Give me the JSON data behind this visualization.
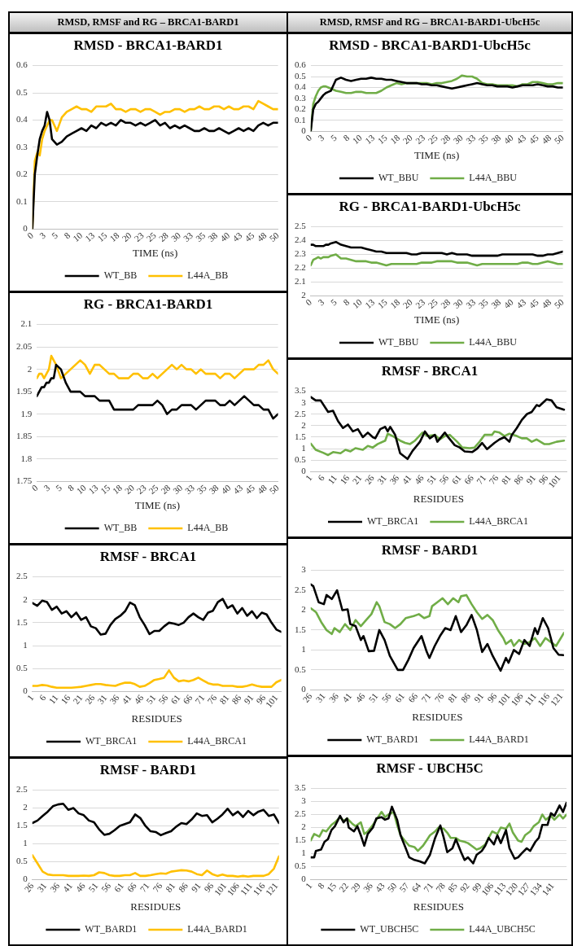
{
  "chart_data": [
    {
      "type": "other",
      "title": "RMSD, RMSF and RG – BRCA1-BARD1"
    },
    {
      "type": "line",
      "title": "RMSD - BRCA1-BARD1",
      "xlabel": "TIME (ns)",
      "grid": "y",
      "legend": "bottom",
      "marker": "none",
      "xlim": [
        0,
        50
      ],
      "ylim": [
        0,
        0.6
      ],
      "yticks": [
        0,
        0.1,
        0.2,
        0.3,
        0.4,
        0.5,
        0.6
      ],
      "xticks": [
        0,
        {
          "value": 2.5,
          "label": "3"
        },
        5,
        {
          "value": 7.5,
          "label": "8"
        },
        10,
        {
          "value": 12.5,
          "label": "13"
        },
        15,
        {
          "value": 17.5,
          "label": "18"
        },
        20,
        {
          "value": 22.5,
          "label": "23"
        },
        25,
        {
          "value": 27.5,
          "label": "28"
        },
        30,
        {
          "value": 32.5,
          "label": "33"
        },
        35,
        {
          "value": 37.5,
          "label": "38"
        },
        40,
        {
          "value": 42.5,
          "label": "43"
        },
        45,
        {
          "value": 47.5,
          "label": "48"
        },
        50
      ],
      "x": [
        0,
        0.5,
        1,
        1.5,
        2,
        2.5,
        3,
        3.5,
        4,
        5,
        6,
        7,
        8,
        9,
        10,
        11,
        12,
        13,
        14,
        15,
        16,
        17,
        18,
        19,
        20,
        21,
        22,
        23,
        24,
        25,
        26,
        27,
        28,
        29,
        30,
        31,
        32,
        33,
        34,
        35,
        36,
        37,
        38,
        39,
        40,
        41,
        42,
        43,
        44,
        45,
        46,
        47,
        48,
        49,
        50
      ],
      "series": [
        {
          "name": "WT_BB",
          "color": "#000000",
          "values": [
            0,
            0.2,
            0.27,
            0.33,
            0.36,
            0.38,
            0.43,
            0.4,
            0.33,
            0.31,
            0.32,
            0.34,
            0.35,
            0.36,
            0.37,
            0.36,
            0.38,
            0.37,
            0.39,
            0.38,
            0.39,
            0.38,
            0.4,
            0.39,
            0.39,
            0.38,
            0.39,
            0.38,
            0.39,
            0.4,
            0.38,
            0.39,
            0.37,
            0.38,
            0.37,
            0.38,
            0.37,
            0.36,
            0.36,
            0.37,
            0.36,
            0.36,
            0.37,
            0.36,
            0.35,
            0.36,
            0.37,
            0.36,
            0.37,
            0.36,
            0.38,
            0.39,
            0.38,
            0.39,
            0.39
          ]
        },
        {
          "name": "L44A_BB",
          "color": "#ffc000",
          "values": [
            0,
            0.25,
            0.28,
            0.27,
            0.33,
            0.36,
            0.38,
            0.4,
            0.4,
            0.36,
            0.41,
            0.43,
            0.44,
            0.45,
            0.44,
            0.44,
            0.43,
            0.45,
            0.45,
            0.45,
            0.46,
            0.44,
            0.44,
            0.43,
            0.44,
            0.44,
            0.43,
            0.44,
            0.44,
            0.43,
            0.42,
            0.43,
            0.43,
            0.44,
            0.44,
            0.43,
            0.44,
            0.44,
            0.45,
            0.44,
            0.44,
            0.45,
            0.45,
            0.44,
            0.45,
            0.44,
            0.44,
            0.45,
            0.45,
            0.44,
            0.47,
            0.46,
            0.45,
            0.44,
            0.44
          ]
        }
      ]
    },
    {
      "type": "line",
      "title": "RG - BRCA1-BARD1",
      "xlabel": "TIME (ns)",
      "grid": "y",
      "legend": "bottom",
      "marker": "none",
      "xlim": [
        0,
        50
      ],
      "ylim": [
        1.75,
        2.1
      ],
      "yticks": [
        1.75,
        1.8,
        1.85,
        1.9,
        1.95,
        2,
        2.05,
        2.1
      ],
      "xticks": [
        0,
        {
          "value": 2.5,
          "label": "3"
        },
        5,
        {
          "value": 7.5,
          "label": "8"
        },
        10,
        {
          "value": 12.5,
          "label": "13"
        },
        15,
        {
          "value": 17.5,
          "label": "18"
        },
        20,
        {
          "value": 22.5,
          "label": "23"
        },
        25,
        {
          "value": 27.5,
          "label": "28"
        },
        30,
        {
          "value": 32.5,
          "label": "33"
        },
        35,
        {
          "value": 37.5,
          "label": "38"
        },
        40,
        {
          "value": 42.5,
          "label": "43"
        },
        45,
        {
          "value": 47.5,
          "label": "48"
        },
        50
      ],
      "x": [
        0,
        0.5,
        1,
        1.5,
        2,
        2.5,
        3,
        3.5,
        4,
        5,
        6,
        7,
        8,
        9,
        10,
        11,
        12,
        13,
        14,
        15,
        16,
        17,
        18,
        19,
        20,
        21,
        22,
        23,
        24,
        25,
        26,
        27,
        28,
        29,
        30,
        31,
        32,
        33,
        34,
        35,
        36,
        37,
        38,
        39,
        40,
        41,
        42,
        43,
        44,
        45,
        46,
        47,
        48,
        49,
        50
      ],
      "series": [
        {
          "name": "WT_BB",
          "color": "#000000",
          "values": [
            1.94,
            1.95,
            1.96,
            1.96,
            1.97,
            1.97,
            1.98,
            1.98,
            2.01,
            2,
            1.97,
            1.95,
            1.95,
            1.95,
            1.94,
            1.94,
            1.94,
            1.93,
            1.93,
            1.93,
            1.91,
            1.91,
            1.91,
            1.91,
            1.91,
            1.92,
            1.92,
            1.92,
            1.92,
            1.93,
            1.92,
            1.9,
            1.91,
            1.91,
            1.92,
            1.92,
            1.92,
            1.91,
            1.92,
            1.93,
            1.93,
            1.93,
            1.92,
            1.92,
            1.93,
            1.92,
            1.93,
            1.94,
            1.93,
            1.92,
            1.92,
            1.91,
            1.91,
            1.89,
            1.9
          ]
        },
        {
          "name": "L44A_BB",
          "color": "#ffc000",
          "values": [
            1.98,
            1.99,
            1.99,
            1.98,
            1.99,
            2,
            2.03,
            2.02,
            2.01,
            1.98,
            1.99,
            2,
            2.01,
            2.02,
            2.01,
            1.99,
            2.01,
            2.01,
            2,
            1.99,
            1.99,
            1.98,
            1.98,
            1.98,
            1.99,
            1.99,
            1.98,
            1.98,
            1.99,
            1.98,
            1.99,
            2,
            2.01,
            2,
            2.01,
            2,
            2,
            1.99,
            2,
            1.99,
            1.99,
            1.99,
            1.98,
            1.99,
            1.99,
            1.98,
            1.99,
            2,
            2,
            2,
            2.01,
            2.01,
            2.02,
            2,
            1.99
          ]
        }
      ]
    },
    {
      "type": "line",
      "title": "RMSF - BRCA1",
      "xlabel": "RESIDUES",
      "grid": "y",
      "legend": "bottom",
      "marker": "none",
      "xlim": [
        1,
        103
      ],
      "ylim": [
        0,
        2.5
      ],
      "yticks": [
        0,
        0.5,
        1,
        1.5,
        2,
        2.5
      ],
      "xticks": [
        1,
        6,
        11,
        16,
        21,
        26,
        31,
        36,
        41,
        46,
        51,
        56,
        61,
        66,
        71,
        76,
        81,
        86,
        91,
        96,
        101
      ],
      "x": [
        1,
        3,
        5,
        7,
        9,
        11,
        13,
        15,
        17,
        19,
        21,
        23,
        25,
        27,
        29,
        31,
        33,
        35,
        37,
        39,
        41,
        43,
        45,
        47,
        49,
        51,
        53,
        55,
        57,
        59,
        61,
        63,
        65,
        67,
        69,
        71,
        73,
        75,
        77,
        79,
        81,
        83,
        85,
        87,
        89,
        91,
        93,
        95,
        97,
        99,
        101,
        103
      ],
      "series": [
        {
          "name": "WT_BRCA1",
          "color": "#000000",
          "values": [
            1.93,
            1.87,
            1.98,
            1.95,
            1.78,
            1.85,
            1.7,
            1.75,
            1.62,
            1.72,
            1.56,
            1.62,
            1.42,
            1.38,
            1.24,
            1.26,
            1.45,
            1.58,
            1.65,
            1.75,
            1.94,
            1.88,
            1.62,
            1.45,
            1.25,
            1.32,
            1.32,
            1.42,
            1.5,
            1.48,
            1.45,
            1.5,
            1.62,
            1.7,
            1.62,
            1.56,
            1.72,
            1.76,
            1.95,
            2.02,
            1.82,
            1.88,
            1.7,
            1.82,
            1.65,
            1.75,
            1.6,
            1.72,
            1.68,
            1.5,
            1.35,
            1.3
          ]
        },
        {
          "name": "L44A_BRCA1",
          "color": "#ffc000",
          "values": [
            0.12,
            0.12,
            0.14,
            0.13,
            0.1,
            0.08,
            0.08,
            0.08,
            0.08,
            0.09,
            0.1,
            0.12,
            0.14,
            0.16,
            0.16,
            0.14,
            0.13,
            0.12,
            0.16,
            0.19,
            0.19,
            0.16,
            0.1,
            0.12,
            0.18,
            0.25,
            0.27,
            0.3,
            0.46,
            0.3,
            0.22,
            0.24,
            0.22,
            0.25,
            0.3,
            0.24,
            0.18,
            0.15,
            0.15,
            0.12,
            0.12,
            0.12,
            0.1,
            0.1,
            0.12,
            0.15,
            0.12,
            0.1,
            0.1,
            0.1,
            0.2,
            0.25
          ]
        }
      ]
    },
    {
      "type": "line",
      "title": "RMSF - BARD1",
      "xlabel": "RESIDUES",
      "grid": "y",
      "legend": "bottom",
      "marker": "none",
      "xlim": [
        26,
        122
      ],
      "ylim": [
        0,
        2.5
      ],
      "yticks": [
        0,
        0.5,
        1,
        1.5,
        2,
        2.5
      ],
      "xticks": [
        26,
        31,
        36,
        41,
        46,
        51,
        56,
        61,
        66,
        71,
        76,
        81,
        86,
        91,
        96,
        101,
        106,
        111,
        116,
        121
      ],
      "x": [
        26,
        28,
        30,
        32,
        34,
        36,
        38,
        40,
        42,
        44,
        46,
        48,
        50,
        52,
        54,
        56,
        58,
        60,
        62,
        64,
        66,
        68,
        70,
        72,
        74,
        76,
        78,
        80,
        82,
        84,
        86,
        88,
        90,
        92,
        94,
        96,
        98,
        100,
        102,
        104,
        106,
        108,
        110,
        112,
        114,
        116,
        118,
        120,
        122
      ],
      "series": [
        {
          "name": "WT_BARD1",
          "color": "#000000",
          "values": [
            1.58,
            1.65,
            1.78,
            1.9,
            2.05,
            2.1,
            2.12,
            1.95,
            2,
            1.85,
            1.8,
            1.65,
            1.6,
            1.4,
            1.25,
            1.28,
            1.38,
            1.5,
            1.55,
            1.6,
            1.82,
            1.72,
            1.5,
            1.35,
            1.33,
            1.24,
            1.3,
            1.35,
            1.48,
            1.58,
            1.55,
            1.68,
            1.85,
            1.78,
            1.8,
            1.6,
            1.7,
            1.82,
            1.98,
            1.8,
            1.9,
            1.75,
            1.92,
            1.8,
            1.9,
            1.95,
            1.78,
            1.82,
            1.58
          ]
        },
        {
          "name": "L44A_BARD1",
          "color": "#ffc000",
          "values": [
            0.68,
            0.45,
            0.22,
            0.14,
            0.12,
            0.12,
            0.12,
            0.1,
            0.1,
            0.1,
            0.11,
            0.1,
            0.12,
            0.2,
            0.18,
            0.12,
            0.1,
            0.1,
            0.12,
            0.12,
            0.18,
            0.1,
            0.1,
            0.12,
            0.15,
            0.17,
            0.16,
            0.22,
            0.24,
            0.26,
            0.25,
            0.22,
            0.15,
            0.12,
            0.25,
            0.15,
            0.1,
            0.14,
            0.1,
            0.1,
            0.08,
            0.1,
            0.08,
            0.1,
            0.1,
            0.1,
            0.15,
            0.3,
            0.65
          ]
        }
      ]
    },
    {
      "type": "other",
      "title": "RMSD, RMSF and RG – BRCA1-BARD1-UbcH5c"
    },
    {
      "type": "line",
      "title": "RMSD - BRCA1-BARD1-UbcH5c",
      "xlabel": "TIME (ns)",
      "grid": "y",
      "legend": "bottom",
      "marker": "none",
      "xlim": [
        0,
        50
      ],
      "ylim": [
        0,
        0.6
      ],
      "yticks": [
        0,
        0.1,
        0.2,
        0.3,
        0.4,
        0.5,
        0.6
      ],
      "xticks": [
        0,
        {
          "value": 2.5,
          "label": "3"
        },
        5,
        {
          "value": 7.5,
          "label": "8"
        },
        10,
        {
          "value": 12.5,
          "label": "13"
        },
        15,
        {
          "value": 17.5,
          "label": "18"
        },
        20,
        {
          "value": 22.5,
          "label": "23"
        },
        25,
        {
          "value": 27.5,
          "label": "28"
        },
        30,
        {
          "value": 32.5,
          "label": "33"
        },
        35,
        {
          "value": 37.5,
          "label": "38"
        },
        40,
        {
          "value": 42.5,
          "label": "43"
        },
        45,
        {
          "value": 47.5,
          "label": "48"
        },
        50
      ],
      "x": [
        0,
        0.5,
        1,
        1.5,
        2,
        2.5,
        3,
        3.5,
        4,
        5,
        6,
        7,
        8,
        9,
        10,
        11,
        12,
        13,
        14,
        15,
        16,
        17,
        18,
        19,
        20,
        21,
        22,
        23,
        24,
        25,
        26,
        27,
        28,
        29,
        30,
        31,
        32,
        33,
        34,
        35,
        36,
        37,
        38,
        39,
        40,
        41,
        42,
        43,
        44,
        45,
        46,
        47,
        48,
        49,
        50
      ],
      "series": [
        {
          "name": "WT_BBU",
          "color": "#000000",
          "values": [
            0,
            0.2,
            0.25,
            0.27,
            0.3,
            0.33,
            0.35,
            0.36,
            0.37,
            0.47,
            0.49,
            0.47,
            0.46,
            0.47,
            0.48,
            0.48,
            0.49,
            0.48,
            0.48,
            0.47,
            0.47,
            0.46,
            0.45,
            0.44,
            0.44,
            0.44,
            0.43,
            0.43,
            0.42,
            0.42,
            0.41,
            0.4,
            0.39,
            0.4,
            0.41,
            0.42,
            0.43,
            0.44,
            0.43,
            0.42,
            0.42,
            0.41,
            0.41,
            0.41,
            0.4,
            0.41,
            0.42,
            0.42,
            0.42,
            0.43,
            0.42,
            0.41,
            0.41,
            0.4,
            0.4
          ]
        },
        {
          "name": "L44A_BBU",
          "color": "#70ad47",
          "values": [
            0,
            0.25,
            0.32,
            0.37,
            0.4,
            0.41,
            0.41,
            0.4,
            0.39,
            0.37,
            0.36,
            0.35,
            0.35,
            0.36,
            0.36,
            0.35,
            0.35,
            0.35,
            0.37,
            0.4,
            0.42,
            0.44,
            0.43,
            0.44,
            0.44,
            0.44,
            0.44,
            0.44,
            0.43,
            0.44,
            0.44,
            0.45,
            0.46,
            0.48,
            0.51,
            0.5,
            0.5,
            0.48,
            0.44,
            0.43,
            0.43,
            0.42,
            0.42,
            0.42,
            0.42,
            0.41,
            0.43,
            0.43,
            0.45,
            0.45,
            0.44,
            0.43,
            0.43,
            0.44,
            0.44
          ]
        }
      ]
    },
    {
      "type": "line",
      "title": "RG - BRCA1-BARD1-UbcH5c",
      "xlabel": "TIME (ns)",
      "grid": "y",
      "legend": "bottom",
      "marker": "none",
      "xlim": [
        0,
        50
      ],
      "ylim": [
        2,
        2.5
      ],
      "yticks": [
        2,
        2.1,
        2.2,
        2.3,
        2.4,
        2.5
      ],
      "xticks": [
        0,
        {
          "value": 2.5,
          "label": "3"
        },
        5,
        {
          "value": 7.5,
          "label": "8"
        },
        10,
        {
          "value": 12.5,
          "label": "13"
        },
        15,
        {
          "value": 17.5,
          "label": "18"
        },
        20,
        {
          "value": 22.5,
          "label": "23"
        },
        25,
        {
          "value": 27.5,
          "label": "28"
        },
        30,
        {
          "value": 32.5,
          "label": "33"
        },
        35,
        {
          "value": 37.5,
          "label": "38"
        },
        40,
        {
          "value": 42.5,
          "label": "43"
        },
        45,
        {
          "value": 47.5,
          "label": "48"
        },
        50
      ],
      "x": [
        0,
        0.5,
        1,
        1.5,
        2,
        2.5,
        3,
        3.5,
        4,
        5,
        6,
        7,
        8,
        9,
        10,
        11,
        12,
        13,
        14,
        15,
        16,
        17,
        18,
        19,
        20,
        21,
        22,
        23,
        24,
        25,
        26,
        27,
        28,
        29,
        30,
        31,
        32,
        33,
        34,
        35,
        36,
        37,
        38,
        39,
        40,
        41,
        42,
        43,
        44,
        45,
        46,
        47,
        48,
        49,
        50
      ],
      "series": [
        {
          "name": "WT_BBU",
          "color": "#000000",
          "values": [
            2.37,
            2.37,
            2.36,
            2.36,
            2.36,
            2.36,
            2.37,
            2.37,
            2.38,
            2.39,
            2.37,
            2.36,
            2.35,
            2.35,
            2.35,
            2.34,
            2.33,
            2.32,
            2.32,
            2.31,
            2.31,
            2.31,
            2.31,
            2.31,
            2.3,
            2.3,
            2.31,
            2.31,
            2.31,
            2.31,
            2.31,
            2.3,
            2.31,
            2.3,
            2.3,
            2.3,
            2.29,
            2.29,
            2.29,
            2.29,
            2.29,
            2.29,
            2.3,
            2.3,
            2.3,
            2.3,
            2.3,
            2.3,
            2.3,
            2.29,
            2.29,
            2.3,
            2.3,
            2.31,
            2.32
          ]
        },
        {
          "name": "L44A_BBU",
          "color": "#70ad47",
          "values": [
            2.22,
            2.26,
            2.27,
            2.28,
            2.27,
            2.28,
            2.28,
            2.28,
            2.29,
            2.3,
            2.27,
            2.27,
            2.26,
            2.25,
            2.25,
            2.25,
            2.24,
            2.24,
            2.23,
            2.22,
            2.23,
            2.23,
            2.23,
            2.23,
            2.23,
            2.23,
            2.24,
            2.24,
            2.24,
            2.25,
            2.25,
            2.25,
            2.25,
            2.24,
            2.24,
            2.24,
            2.23,
            2.22,
            2.23,
            2.23,
            2.23,
            2.23,
            2.23,
            2.23,
            2.23,
            2.23,
            2.24,
            2.24,
            2.23,
            2.23,
            2.24,
            2.25,
            2.24,
            2.23,
            2.23
          ]
        }
      ]
    },
    {
      "type": "line",
      "title": "RMSF - BRCA1",
      "xlabel": "RESIDUES",
      "grid": "y",
      "legend": "bottom",
      "marker": "none",
      "xlim": [
        1,
        104
      ],
      "ylim": [
        0,
        3.5
      ],
      "yticks": [
        0,
        0.5,
        1,
        1.5,
        2,
        2.5,
        3,
        3.5
      ],
      "xticks": [
        1,
        6,
        11,
        16,
        21,
        26,
        31,
        36,
        41,
        46,
        51,
        56,
        61,
        66,
        71,
        76,
        81,
        86,
        91,
        96,
        101
      ],
      "series": [
        {
          "name": "WT_BRCA1",
          "color": "#000000",
          "x": [
            1,
            3,
            5,
            8,
            10,
            12,
            14,
            16,
            18,
            20,
            22,
            24,
            26,
            27,
            29,
            31,
            32,
            33,
            35,
            37,
            40,
            42,
            45,
            47,
            49,
            51,
            52,
            55,
            56,
            59,
            61,
            63,
            66,
            68,
            70,
            72,
            75,
            77,
            79,
            81,
            82,
            84,
            86,
            88,
            90,
            92,
            93,
            96,
            98,
            100,
            103
          ],
          "values": [
            3.25,
            3.1,
            3.1,
            2.6,
            2.65,
            2.2,
            1.9,
            2.05,
            1.75,
            1.85,
            1.5,
            1.7,
            1.5,
            1.45,
            1.85,
            1.95,
            1.75,
            1.95,
            1.6,
            0.8,
            0.55,
            0.9,
            1.3,
            1.75,
            1.45,
            1.6,
            1.3,
            1.7,
            1.55,
            1.15,
            1.05,
            0.88,
            0.85,
            1,
            1.25,
            0.98,
            1.25,
            1.4,
            1.5,
            1.3,
            1.6,
            1.9,
            2.25,
            2.5,
            2.6,
            2.9,
            2.85,
            3.15,
            3.1,
            2.8,
            2.7
          ]
        },
        {
          "name": "L44A_BRCA1",
          "color": "#70ad47",
          "x": [
            1,
            3,
            6,
            8,
            10,
            13,
            15,
            17,
            19,
            22,
            24,
            26,
            28,
            31,
            32,
            34,
            37,
            39,
            41,
            43,
            46,
            48,
            51,
            53,
            55,
            57,
            60,
            62,
            65,
            67,
            69,
            71,
            74,
            75,
            77,
            79,
            81,
            84,
            86,
            88,
            90,
            92,
            95,
            97,
            100,
            103
          ],
          "values": [
            1.22,
            0.95,
            0.82,
            0.72,
            0.85,
            0.8,
            0.95,
            0.88,
            1.02,
            0.95,
            1.12,
            1.05,
            1.2,
            1.35,
            1.65,
            1.55,
            1.35,
            1.25,
            1.2,
            1.35,
            1.7,
            1.55,
            1.6,
            1.4,
            1.55,
            1.6,
            1.3,
            1.05,
            1.02,
            1.05,
            1.3,
            1.6,
            1.6,
            1.75,
            1.7,
            1.55,
            1.65,
            1.55,
            1.45,
            1.45,
            1.3,
            1.4,
            1.2,
            1.2,
            1.3,
            1.35
          ]
        }
      ]
    },
    {
      "type": "line",
      "title": "RMSF - BARD1",
      "xlabel": "RESIDUES",
      "grid": "y",
      "legend": "bottom",
      "marker": "none",
      "xlim": [
        26,
        122
      ],
      "ylim": [
        0,
        3
      ],
      "yticks": [
        0,
        0.5,
        1,
        1.5,
        2,
        2.5,
        3
      ],
      "xticks": [
        26,
        31,
        36,
        41,
        46,
        51,
        56,
        61,
        66,
        71,
        76,
        81,
        86,
        91,
        96,
        101,
        106,
        111,
        116,
        121
      ],
      "series": [
        {
          "name": "WT_BARD1",
          "color": "#000000",
          "x": [
            26,
            27,
            29,
            31,
            32,
            34,
            36,
            38,
            40,
            41,
            43,
            45,
            46,
            48,
            50,
            52,
            54,
            56,
            59,
            61,
            63,
            65,
            68,
            70,
            71,
            73,
            75,
            77,
            79,
            81,
            83,
            85,
            87,
            89,
            91,
            93,
            95,
            98,
            100,
            101,
            103,
            105,
            107,
            109,
            111,
            112,
            114,
            116,
            118,
            120,
            122
          ],
          "values": [
            2.65,
            2.6,
            2.2,
            2.15,
            2.38,
            2.28,
            2.5,
            2,
            2.02,
            1.65,
            1.6,
            1.25,
            1.35,
            0.97,
            0.98,
            1.5,
            1.25,
            0.85,
            0.5,
            0.5,
            0.75,
            1.05,
            1.35,
            0.95,
            0.8,
            1.1,
            1.35,
            1.55,
            1.5,
            1.85,
            1.45,
            1.62,
            1.88,
            1.5,
            0.95,
            1.15,
            0.85,
            0.48,
            0.8,
            0.68,
            1,
            0.9,
            1.25,
            1.1,
            1.55,
            1.4,
            1.8,
            1.55,
            1.05,
            0.88,
            0.87
          ]
        },
        {
          "name": "L44A_BARD1",
          "color": "#70ad47",
          "x": [
            26,
            28,
            30,
            32,
            34,
            35,
            37,
            39,
            41,
            43,
            45,
            47,
            49,
            51,
            52,
            54,
            56,
            58,
            60,
            62,
            65,
            67,
            69,
            71,
            72,
            74,
            76,
            78,
            80,
            82,
            83,
            85,
            87,
            89,
            91,
            93,
            95,
            97,
            99,
            100,
            102,
            103,
            105,
            107,
            109,
            111,
            113,
            115,
            117,
            119,
            122
          ],
          "values": [
            2.05,
            1.95,
            1.7,
            1.5,
            1.4,
            1.55,
            1.45,
            1.65,
            1.5,
            1.75,
            1.6,
            1.75,
            1.9,
            2.2,
            2.1,
            1.7,
            1.65,
            1.55,
            1.65,
            1.8,
            1.85,
            1.9,
            1.8,
            1.85,
            2.1,
            2.2,
            2.3,
            2.15,
            2.3,
            2.2,
            2.35,
            2.38,
            2.15,
            1.95,
            1.78,
            1.88,
            1.75,
            1.5,
            1.3,
            1.15,
            1.25,
            1.1,
            1.25,
            1.15,
            1.2,
            1.3,
            1.1,
            1.3,
            1.2,
            1.1,
            1.43
          ]
        }
      ]
    },
    {
      "type": "line",
      "title": "RMSF - UBCH5C",
      "xlabel": "RESIDUES",
      "grid": "y",
      "legend": "bottom",
      "marker": "none",
      "xlim": [
        1,
        149
      ],
      "ylim": [
        0,
        3.5
      ],
      "yticks": [
        0,
        0.5,
        1,
        1.5,
        2,
        2.5,
        3,
        3.5
      ],
      "xticks": [
        1,
        8,
        15,
        22,
        29,
        36,
        43,
        50,
        57,
        64,
        71,
        78,
        85,
        92,
        99,
        106,
        113,
        120,
        127,
        134,
        141
      ],
      "series": [
        {
          "name": "WT_UBCH5C",
          "color": "#000000",
          "x": [
            1,
            3,
            4,
            7,
            9,
            11,
            13,
            15,
            18,
            20,
            22,
            23,
            26,
            28,
            30,
            32,
            34,
            37,
            39,
            42,
            44,
            46,
            48,
            51,
            53,
            56,
            58,
            61,
            64,
            67,
            70,
            73,
            76,
            78,
            80,
            83,
            85,
            88,
            90,
            92,
            95,
            97,
            100,
            102,
            104,
            107,
            109,
            111,
            114,
            116,
            119,
            121,
            123,
            126,
            128,
            131,
            133,
            135,
            138,
            140,
            142,
            145,
            147,
            149
          ],
          "values": [
            0.85,
            0.85,
            1.1,
            1.15,
            1.45,
            1.55,
            1.9,
            2.05,
            2.45,
            2.2,
            2.35,
            2,
            1.85,
            2.05,
            1.7,
            1.3,
            1.75,
            2,
            2.35,
            2.4,
            2.3,
            2.35,
            2.8,
            2.3,
            1.7,
            1.2,
            0.85,
            0.75,
            0.7,
            0.62,
            0.95,
            1.6,
            2.08,
            1.6,
            1.05,
            1.2,
            1.55,
            1.05,
            0.75,
            0.85,
            0.62,
            0.95,
            1.1,
            1.3,
            1.6,
            1.35,
            1.7,
            1.4,
            1.9,
            1.2,
            0.8,
            0.85,
            1,
            1.2,
            1.1,
            1.45,
            1.6,
            2.1,
            2.1,
            2.55,
            2.45,
            2.85,
            2.6,
            2.95
          ]
        },
        {
          "name": "L44A_UBCH5C",
          "color": "#70ad47",
          "x": [
            1,
            3,
            6,
            8,
            10,
            13,
            15,
            18,
            20,
            22,
            25,
            27,
            30,
            32,
            34,
            37,
            39,
            42,
            44,
            46,
            49,
            51,
            53,
            56,
            58,
            61,
            63,
            66,
            68,
            70,
            73,
            75,
            78,
            80,
            82,
            85,
            87,
            90,
            92,
            94,
            97,
            99,
            102,
            104,
            106,
            109,
            111,
            114,
            116,
            118,
            121,
            123,
            125,
            128,
            130,
            133,
            135,
            137,
            140,
            142,
            145,
            147,
            149
          ],
          "values": [
            1.5,
            1.75,
            1.65,
            1.9,
            1.85,
            2.1,
            2.2,
            2.4,
            2.25,
            2.35,
            2.15,
            2.05,
            2.2,
            1.75,
            1.85,
            2.1,
            2.3,
            2.6,
            2.4,
            2.5,
            2.6,
            2.1,
            1.7,
            1.45,
            1.3,
            1.25,
            1.1,
            1.3,
            1.5,
            1.7,
            1.85,
            2,
            1.95,
            1.8,
            1.6,
            1.6,
            1.5,
            1.45,
            1.4,
            1.3,
            1.15,
            1.2,
            1.35,
            1.6,
            1.85,
            1.75,
            2,
            1.95,
            2.15,
            1.8,
            1.5,
            1.45,
            1.7,
            1.85,
            2.05,
            2.2,
            2.5,
            2.3,
            2.45,
            2.3,
            2.5,
            2.35,
            2.5
          ]
        }
      ]
    }
  ]
}
